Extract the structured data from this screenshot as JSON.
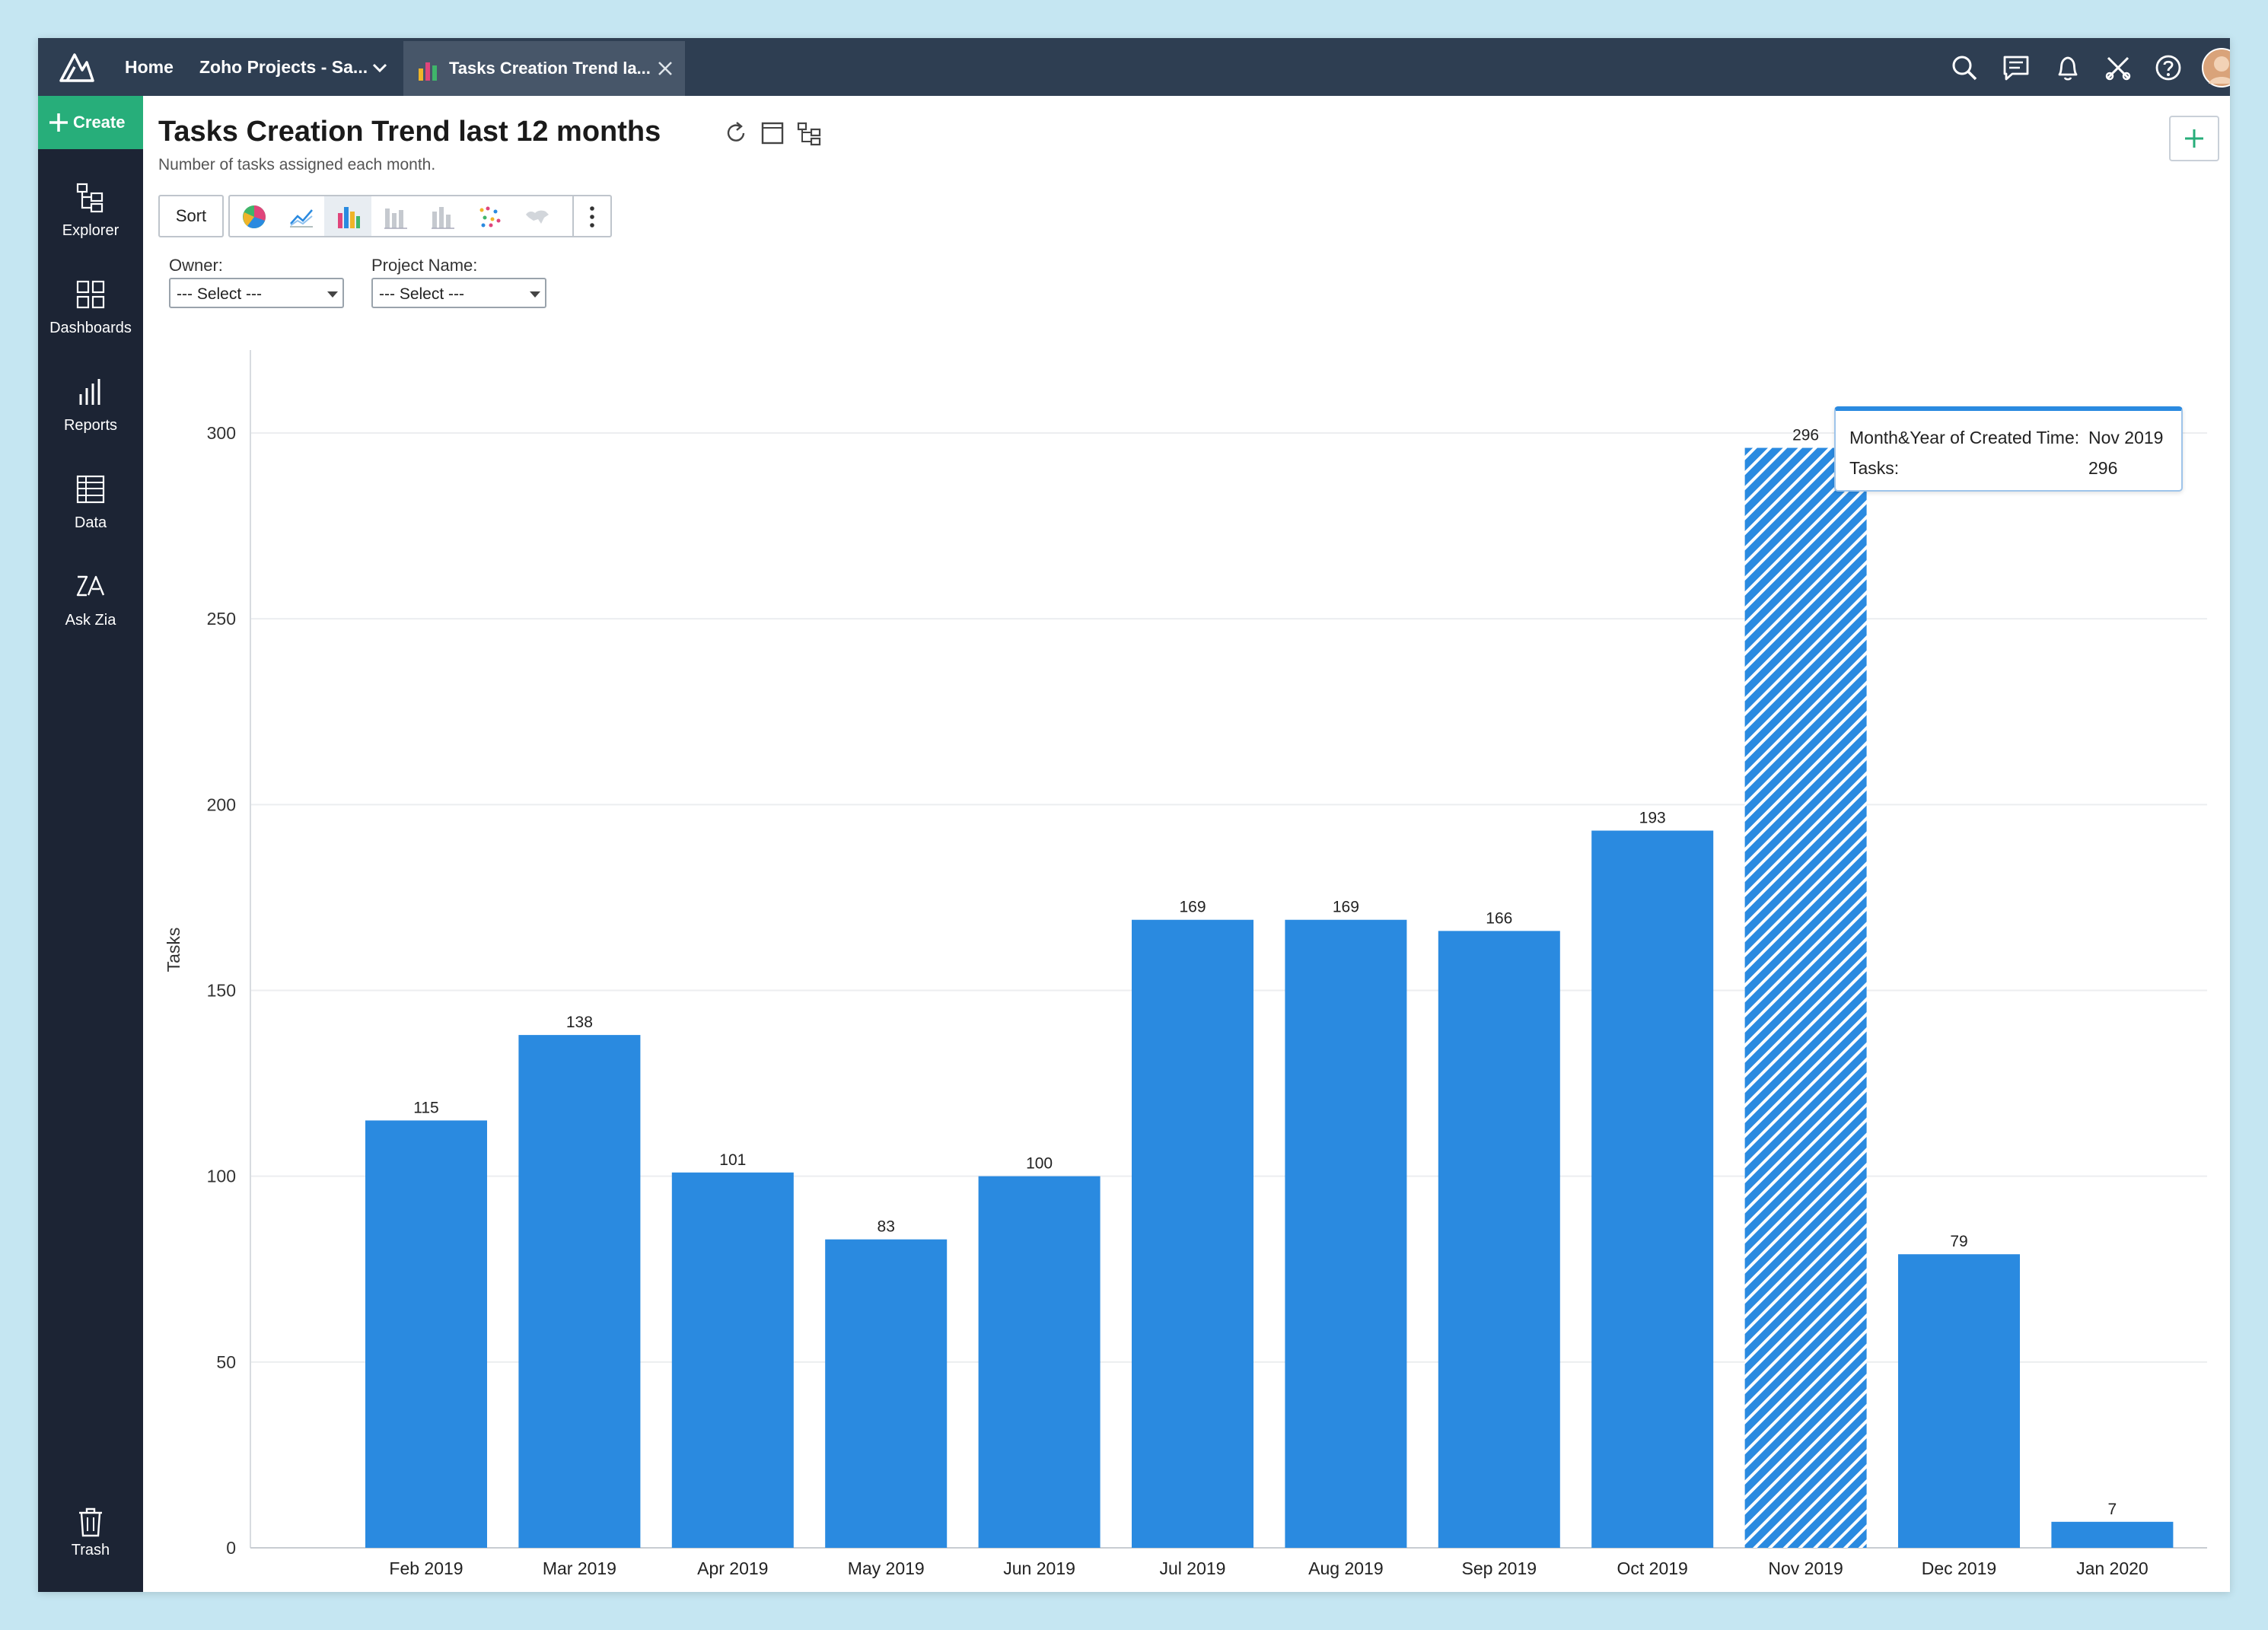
{
  "topbar": {
    "home_label": "Home",
    "workspace_label": "Zoho Projects - Sa...",
    "active_tab_label": "Tasks Creation Trend la..."
  },
  "sidebar": {
    "create_label": "Create",
    "items": [
      {
        "label": "Explorer",
        "icon": "explorer-icon"
      },
      {
        "label": "Dashboards",
        "icon": "dashboards-icon"
      },
      {
        "label": "Reports",
        "icon": "reports-icon"
      },
      {
        "label": "Data",
        "icon": "data-icon"
      },
      {
        "label": "Ask Zia",
        "icon": "ask-zia-icon"
      }
    ],
    "trash_label": "Trash"
  },
  "report": {
    "title": "Tasks Creation Trend last 12 months",
    "subtitle": "Number of tasks assigned each month."
  },
  "toolbar": {
    "sort_label": "Sort",
    "chart_types": [
      "pie",
      "line",
      "bar",
      "stacked-bar",
      "percent-bar",
      "scatter",
      "map"
    ],
    "selected_chart_type": "bar"
  },
  "filters": {
    "owner_label": "Owner:",
    "owner_value": "--- Select ---",
    "project_label": "Project Name:",
    "project_value": "--- Select ---"
  },
  "colors": {
    "accent": "#2a8ae0",
    "bar": "#2a8ae0",
    "topbar": "#2e3e52",
    "sidebar": "#1c2434",
    "create": "#27ae7a"
  },
  "chart_data": {
    "type": "bar",
    "ylabel": "Tasks",
    "xlabel": "",
    "ylim": [
      0,
      320
    ],
    "yticks": [
      0,
      50,
      100,
      150,
      200,
      250,
      300
    ],
    "grid": true,
    "categories": [
      "Feb 2019",
      "Mar 2019",
      "Apr 2019",
      "May 2019",
      "Jun 2019",
      "Jul 2019",
      "Aug 2019",
      "Sep 2019",
      "Oct 2019",
      "Nov 2019",
      "Dec 2019",
      "Jan 2020"
    ],
    "values": [
      115,
      138,
      101,
      83,
      100,
      169,
      169,
      166,
      193,
      296,
      79,
      7
    ],
    "highlighted_index": 9
  },
  "tooltip": {
    "key1": "Month&Year of Created Time:",
    "value1": "Nov 2019",
    "key2": "Tasks:",
    "value2": "296"
  }
}
